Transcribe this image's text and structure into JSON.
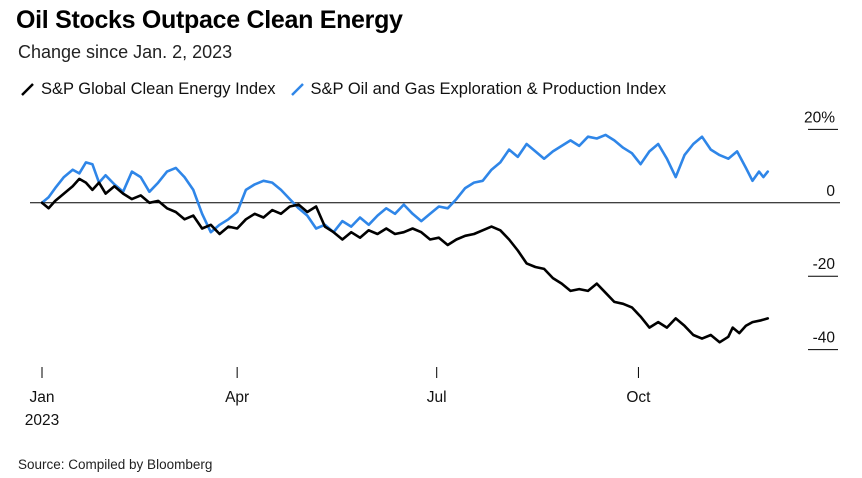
{
  "header": {
    "title": "Oil Stocks Outpace Clean Energy",
    "subtitle": "Change since Jan. 2, 2023"
  },
  "footer": {
    "source": "Source: Compiled by Bloomberg"
  },
  "chart_data": {
    "type": "line",
    "title": "Oil Stocks Outpace Clean Energy",
    "subtitle": "Change since Jan. 2, 2023",
    "xlabel": "",
    "ylabel": "",
    "x_range": [
      "2023-01-02",
      "2023-11-30"
    ],
    "ylim": [
      -45,
      25
    ],
    "y_ticks": [
      {
        "value": 20,
        "label": "20%"
      },
      {
        "value": 0,
        "label": "0"
      },
      {
        "value": -20,
        "label": "-20"
      },
      {
        "value": -40,
        "label": "-40"
      }
    ],
    "x_ticks": [
      {
        "date": "2023-01-02",
        "label": "Jan",
        "sublabel": "2023"
      },
      {
        "date": "2023-04-01",
        "label": "Apr",
        "sublabel": ""
      },
      {
        "date": "2023-07-01",
        "label": "Jul",
        "sublabel": ""
      },
      {
        "date": "2023-10-01",
        "label": "Oct",
        "sublabel": ""
      }
    ],
    "zero_line": true,
    "grid": false,
    "y_axis_position": "right",
    "legend_position": "top-left",
    "series": [
      {
        "name": "S&P Global Clean Energy Index",
        "color": "#000000",
        "points": [
          [
            "2023-01-02",
            0
          ],
          [
            "2023-01-05",
            -1.5
          ],
          [
            "2023-01-08",
            0.5
          ],
          [
            "2023-01-12",
            2.5
          ],
          [
            "2023-01-16",
            4.5
          ],
          [
            "2023-01-19",
            6.5
          ],
          [
            "2023-01-22",
            5.5
          ],
          [
            "2023-01-25",
            3.5
          ],
          [
            "2023-01-28",
            5.5
          ],
          [
            "2023-01-31",
            2.5
          ],
          [
            "2023-02-04",
            4.5
          ],
          [
            "2023-02-08",
            2.5
          ],
          [
            "2023-02-12",
            1.0
          ],
          [
            "2023-02-16",
            2.0
          ],
          [
            "2023-02-20",
            0.0
          ],
          [
            "2023-02-24",
            0.5
          ],
          [
            "2023-02-28",
            -1.5
          ],
          [
            "2023-03-04",
            -2.5
          ],
          [
            "2023-03-08",
            -4.5
          ],
          [
            "2023-03-12",
            -3.5
          ],
          [
            "2023-03-16",
            -7.0
          ],
          [
            "2023-03-20",
            -6.0
          ],
          [
            "2023-03-24",
            -8.5
          ],
          [
            "2023-03-28",
            -6.5
          ],
          [
            "2023-04-01",
            -7.0
          ],
          [
            "2023-04-05",
            -4.5
          ],
          [
            "2023-04-09",
            -3.0
          ],
          [
            "2023-04-13",
            -4.0
          ],
          [
            "2023-04-17",
            -2.0
          ],
          [
            "2023-04-21",
            -3.0
          ],
          [
            "2023-04-25",
            -1.0
          ],
          [
            "2023-04-29",
            -0.5
          ],
          [
            "2023-05-03",
            -2.5
          ],
          [
            "2023-05-07",
            -1.0
          ],
          [
            "2023-05-11",
            -6.5
          ],
          [
            "2023-05-15",
            -8.0
          ],
          [
            "2023-05-19",
            -10.0
          ],
          [
            "2023-05-23",
            -8.0
          ],
          [
            "2023-05-27",
            -9.5
          ],
          [
            "2023-05-31",
            -7.5
          ],
          [
            "2023-06-04",
            -8.5
          ],
          [
            "2023-06-08",
            -7.0
          ],
          [
            "2023-06-12",
            -8.5
          ],
          [
            "2023-06-16",
            -8.0
          ],
          [
            "2023-06-20",
            -7.0
          ],
          [
            "2023-06-24",
            -8.0
          ],
          [
            "2023-06-28",
            -10.0
          ],
          [
            "2023-07-02",
            -9.5
          ],
          [
            "2023-07-06",
            -11.5
          ],
          [
            "2023-07-10",
            -10.0
          ],
          [
            "2023-07-14",
            -9.0
          ],
          [
            "2023-07-18",
            -8.5
          ],
          [
            "2023-07-22",
            -7.5
          ],
          [
            "2023-07-26",
            -6.5
          ],
          [
            "2023-07-30",
            -7.5
          ],
          [
            "2023-08-03",
            -10.0
          ],
          [
            "2023-08-07",
            -13.0
          ],
          [
            "2023-08-11",
            -16.5
          ],
          [
            "2023-08-15",
            -17.5
          ],
          [
            "2023-08-19",
            -18.0
          ],
          [
            "2023-08-23",
            -20.5
          ],
          [
            "2023-08-27",
            -22.0
          ],
          [
            "2023-08-31",
            -24.0
          ],
          [
            "2023-09-04",
            -23.5
          ],
          [
            "2023-09-08",
            -24.0
          ],
          [
            "2023-09-12",
            -22.0
          ],
          [
            "2023-09-16",
            -24.5
          ],
          [
            "2023-09-20",
            -27.0
          ],
          [
            "2023-09-24",
            -27.5
          ],
          [
            "2023-09-28",
            -28.5
          ],
          [
            "2023-10-02",
            -31.0
          ],
          [
            "2023-10-06",
            -34.0
          ],
          [
            "2023-10-10",
            -32.5
          ],
          [
            "2023-10-14",
            -34.0
          ],
          [
            "2023-10-18",
            -31.5
          ],
          [
            "2023-10-22",
            -33.5
          ],
          [
            "2023-10-26",
            -36.0
          ],
          [
            "2023-10-30",
            -37.0
          ],
          [
            "2023-11-03",
            -36.0
          ],
          [
            "2023-11-07",
            -38.0
          ],
          [
            "2023-11-11",
            -36.5
          ],
          [
            "2023-11-13",
            -34.0
          ],
          [
            "2023-11-16",
            -35.5
          ],
          [
            "2023-11-19",
            -33.5
          ],
          [
            "2023-11-22",
            -32.5
          ],
          [
            "2023-11-26",
            -32.0
          ],
          [
            "2023-11-29",
            -31.5
          ]
        ]
      },
      {
        "name": "S&P Oil and Gas Exploration & Production Index",
        "color": "#2f86e8",
        "points": [
          [
            "2023-01-02",
            0
          ],
          [
            "2023-01-05",
            1.5
          ],
          [
            "2023-01-08",
            4.0
          ],
          [
            "2023-01-12",
            7.0
          ],
          [
            "2023-01-16",
            9.0
          ],
          [
            "2023-01-19",
            8.0
          ],
          [
            "2023-01-22",
            11.0
          ],
          [
            "2023-01-25",
            10.5
          ],
          [
            "2023-01-28",
            5.5
          ],
          [
            "2023-01-31",
            7.5
          ],
          [
            "2023-02-04",
            5.0
          ],
          [
            "2023-02-08",
            3.0
          ],
          [
            "2023-02-12",
            8.5
          ],
          [
            "2023-02-16",
            7.0
          ],
          [
            "2023-02-20",
            3.0
          ],
          [
            "2023-02-24",
            5.5
          ],
          [
            "2023-02-28",
            8.5
          ],
          [
            "2023-03-04",
            9.5
          ],
          [
            "2023-03-08",
            7.0
          ],
          [
            "2023-03-12",
            3.5
          ],
          [
            "2023-03-16",
            -3.0
          ],
          [
            "2023-03-20",
            -8.0
          ],
          [
            "2023-03-24",
            -6.0
          ],
          [
            "2023-03-28",
            -4.5
          ],
          [
            "2023-04-01",
            -2.5
          ],
          [
            "2023-04-05",
            3.5
          ],
          [
            "2023-04-09",
            5.0
          ],
          [
            "2023-04-13",
            6.0
          ],
          [
            "2023-04-17",
            5.5
          ],
          [
            "2023-04-21",
            3.5
          ],
          [
            "2023-04-25",
            1.0
          ],
          [
            "2023-04-29",
            -1.5
          ],
          [
            "2023-05-03",
            -3.5
          ],
          [
            "2023-05-07",
            -7.0
          ],
          [
            "2023-05-11",
            -6.0
          ],
          [
            "2023-05-15",
            -8.0
          ],
          [
            "2023-05-19",
            -5.0
          ],
          [
            "2023-05-23",
            -6.5
          ],
          [
            "2023-05-27",
            -4.0
          ],
          [
            "2023-05-31",
            -6.0
          ],
          [
            "2023-06-04",
            -3.5
          ],
          [
            "2023-06-08",
            -1.5
          ],
          [
            "2023-06-12",
            -3.0
          ],
          [
            "2023-06-16",
            -0.5
          ],
          [
            "2023-06-20",
            -3.0
          ],
          [
            "2023-06-24",
            -5.0
          ],
          [
            "2023-06-28",
            -3.0
          ],
          [
            "2023-07-02",
            -1.0
          ],
          [
            "2023-07-06",
            -1.5
          ],
          [
            "2023-07-10",
            1.0
          ],
          [
            "2023-07-14",
            4.0
          ],
          [
            "2023-07-18",
            5.5
          ],
          [
            "2023-07-22",
            6.0
          ],
          [
            "2023-07-26",
            9.0
          ],
          [
            "2023-07-30",
            11.0
          ],
          [
            "2023-08-03",
            14.5
          ],
          [
            "2023-08-07",
            12.5
          ],
          [
            "2023-08-11",
            16.0
          ],
          [
            "2023-08-15",
            14.0
          ],
          [
            "2023-08-19",
            12.0
          ],
          [
            "2023-08-23",
            14.0
          ],
          [
            "2023-08-27",
            15.5
          ],
          [
            "2023-08-31",
            17.0
          ],
          [
            "2023-09-04",
            15.5
          ],
          [
            "2023-09-08",
            18.0
          ],
          [
            "2023-09-12",
            17.5
          ],
          [
            "2023-09-16",
            18.5
          ],
          [
            "2023-09-20",
            17.0
          ],
          [
            "2023-09-24",
            15.0
          ],
          [
            "2023-09-28",
            13.5
          ],
          [
            "2023-10-02",
            10.5
          ],
          [
            "2023-10-06",
            14.0
          ],
          [
            "2023-10-10",
            16.0
          ],
          [
            "2023-10-14",
            12.0
          ],
          [
            "2023-10-18",
            7.0
          ],
          [
            "2023-10-22",
            13.0
          ],
          [
            "2023-10-26",
            16.0
          ],
          [
            "2023-10-30",
            18.0
          ],
          [
            "2023-11-03",
            14.5
          ],
          [
            "2023-11-07",
            13.0
          ],
          [
            "2023-11-11",
            12.0
          ],
          [
            "2023-11-15",
            14.0
          ],
          [
            "2023-11-19",
            9.5
          ],
          [
            "2023-11-22",
            6.0
          ],
          [
            "2023-11-25",
            8.5
          ],
          [
            "2023-11-27",
            7.0
          ],
          [
            "2023-11-29",
            8.5
          ]
        ]
      }
    ]
  }
}
